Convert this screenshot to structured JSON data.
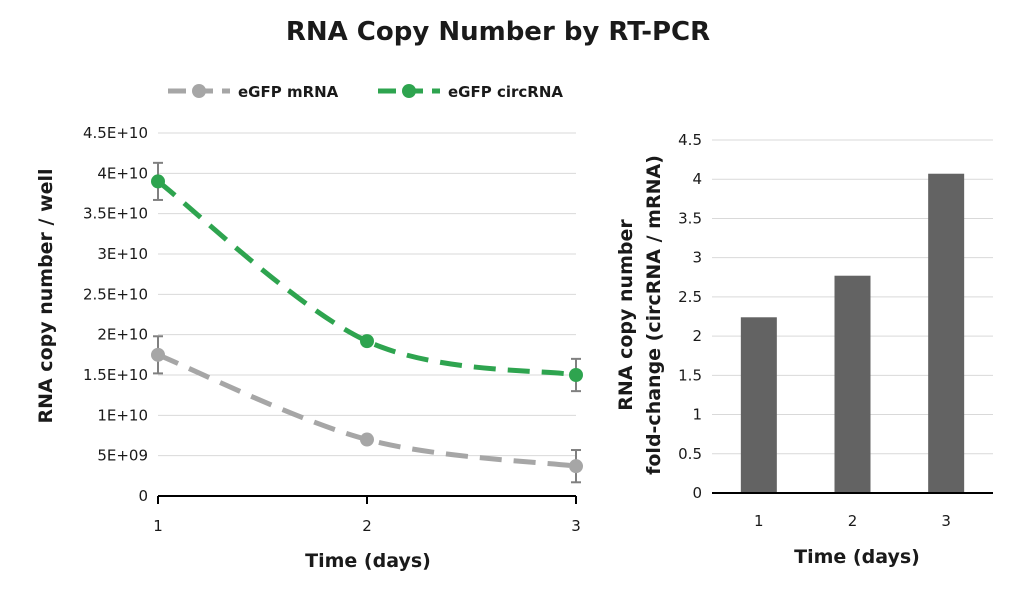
{
  "title": "RNA Copy Number by RT-PCR",
  "chart_data": [
    {
      "type": "line",
      "x": [
        1,
        2,
        3
      ],
      "xlim": [
        1,
        3
      ],
      "xticks": [
        "1",
        "2",
        "3"
      ],
      "ylim": [
        0,
        45000000000
      ],
      "yticks": [
        0,
        5000000000,
        10000000000,
        15000000000,
        20000000000,
        25000000000,
        30000000000,
        35000000000,
        40000000000,
        45000000000
      ],
      "ytick_labels": [
        "0",
        "5E+09",
        "1E+10",
        "1.5E+10",
        "2E+10",
        "2.5E+10",
        "3E+10",
        "3.5E+10",
        "4E+10",
        "4.5E+10"
      ],
      "xlabel": "Time (days)",
      "ylabel": "RNA copy number / well",
      "grid": true,
      "legend": "top",
      "series": [
        {
          "name": "eGFP mRNA",
          "color": "#a6a6a6",
          "values": [
            17500000000,
            7000000000,
            3700000000
          ],
          "error": [
            2300000000,
            0,
            2000000000
          ]
        },
        {
          "name": "eGFP circRNA",
          "color": "#2ea44f",
          "values": [
            39000000000,
            19200000000,
            15000000000
          ],
          "error": [
            2300000000,
            0,
            2000000000
          ]
        }
      ]
    },
    {
      "type": "bar",
      "categories": [
        "1",
        "2",
        "3"
      ],
      "values": [
        2.24,
        2.77,
        4.07
      ],
      "color": "#636363",
      "ylim": [
        0,
        4.5
      ],
      "yticks": [
        "0",
        "0.5",
        "1",
        "1.5",
        "2",
        "2.5",
        "3",
        "3.5",
        "4",
        "4.5"
      ],
      "xlabel": "Time (days)",
      "ylabel": [
        "RNA copy number",
        "fold-change (circRNA / mRNA)"
      ],
      "grid": true
    }
  ]
}
